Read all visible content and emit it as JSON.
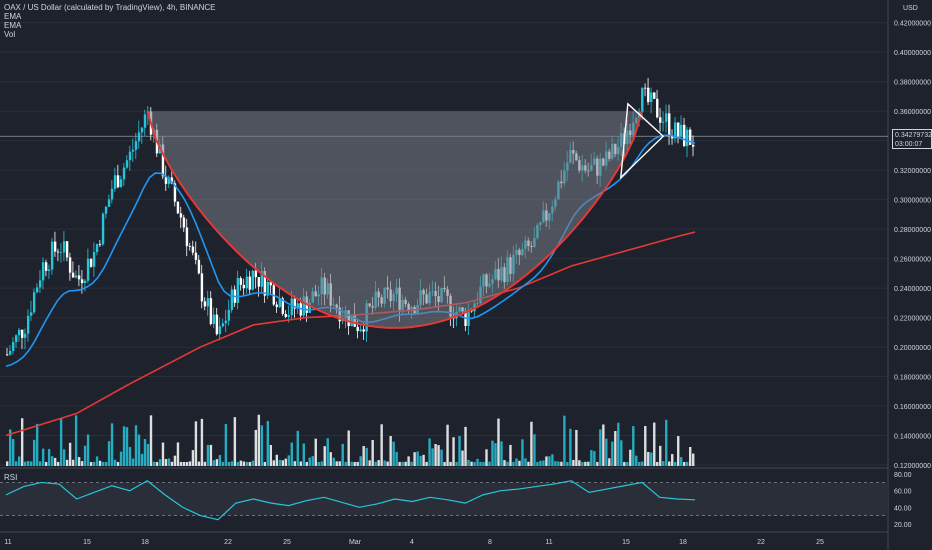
{
  "legend": {
    "title": "OAX / US Dollar (calculated by TradingView), 4h, BINANCE",
    "ind1": "EMA",
    "ind2": "EMA",
    "ind3": "Vol"
  },
  "rsi_label": "RSI",
  "price_axis_unit": "USD",
  "last_price": "0.34279732",
  "countdown": "03:00:07",
  "colors": {
    "background": "#1e222d",
    "bull": "#26c6da",
    "bear": "#ffffff",
    "ema_fast": "#2196f3",
    "ema_slow": "#e53935",
    "cup_curve": "#e53935",
    "cup_fill": "#787b86",
    "rsi_line": "#26c6da",
    "grid": "#2a2e39"
  },
  "chart_data": {
    "type": "candlestick",
    "title": "OAX / US Dollar (calculated by TradingView), 4h, BINANCE",
    "y_ticks": [
      "0.42000000",
      "0.40000000",
      "0.38000000",
      "0.36000000",
      "0.34000000",
      "0.32000000",
      "0.30000000",
      "0.28000000",
      "0.26000000",
      "0.24000000",
      "0.22000000",
      "0.20000000",
      "0.18000000",
      "0.16000000",
      "0.14000000",
      "0.12000000"
    ],
    "x_ticks": [
      "11",
      "15",
      "18",
      "22",
      "25",
      "Mar",
      "4",
      "8",
      "11",
      "15",
      "18",
      "22",
      "25"
    ],
    "ylim": [
      0.12,
      0.43
    ],
    "price_path": [
      [
        11,
        0.195
      ],
      [
        12,
        0.215
      ],
      [
        13,
        0.255
      ],
      [
        14,
        0.27
      ],
      [
        15,
        0.245
      ],
      [
        16,
        0.265
      ],
      [
        17,
        0.31
      ],
      [
        18,
        0.33
      ],
      [
        19,
        0.36
      ],
      [
        20,
        0.315
      ],
      [
        21,
        0.285
      ],
      [
        22,
        0.24
      ],
      [
        23,
        0.205
      ],
      [
        24,
        0.24
      ],
      [
        25,
        0.25
      ],
      [
        26,
        0.24
      ],
      [
        27,
        0.225
      ],
      [
        28,
        0.23
      ],
      [
        29,
        0.24
      ],
      [
        30,
        0.225
      ],
      [
        31,
        0.215
      ],
      [
        32,
        0.23
      ],
      [
        33,
        0.235
      ],
      [
        34,
        0.23
      ],
      [
        35,
        0.235
      ],
      [
        36,
        0.23
      ],
      [
        37,
        0.22
      ],
      [
        38,
        0.24
      ],
      [
        39,
        0.25
      ],
      [
        40,
        0.26
      ],
      [
        41,
        0.27
      ],
      [
        42,
        0.3
      ],
      [
        43,
        0.33
      ],
      [
        44,
        0.32
      ],
      [
        45,
        0.325
      ],
      [
        46,
        0.34
      ],
      [
        47,
        0.37
      ],
      [
        48,
        0.36
      ],
      [
        49,
        0.345
      ],
      [
        50,
        0.34
      ]
    ],
    "ema_slow": [
      [
        11,
        0.14
      ],
      [
        15,
        0.155
      ],
      [
        18,
        0.175
      ],
      [
        22,
        0.2
      ],
      [
        25,
        0.215
      ],
      [
        28,
        0.22
      ],
      [
        31,
        0.222
      ],
      [
        34,
        0.225
      ],
      [
        37,
        0.23
      ],
      [
        40,
        0.24
      ],
      [
        43,
        0.255
      ],
      [
        46,
        0.265
      ],
      [
        49,
        0.275
      ],
      [
        50,
        0.278
      ]
    ],
    "rsi": {
      "levels": [
        70,
        30
      ],
      "y_ticks": [
        "80.00",
        "60.00",
        "40.00",
        "20.00"
      ],
      "ylim": [
        15,
        85
      ],
      "values": [
        55,
        65,
        70,
        68,
        50,
        58,
        66,
        60,
        72,
        55,
        40,
        30,
        25,
        45,
        50,
        45,
        42,
        48,
        52,
        46,
        40,
        44,
        50,
        47,
        52,
        49,
        45,
        55,
        60,
        62,
        65,
        68,
        72,
        58,
        62,
        66,
        70,
        52,
        50,
        49
      ]
    }
  }
}
